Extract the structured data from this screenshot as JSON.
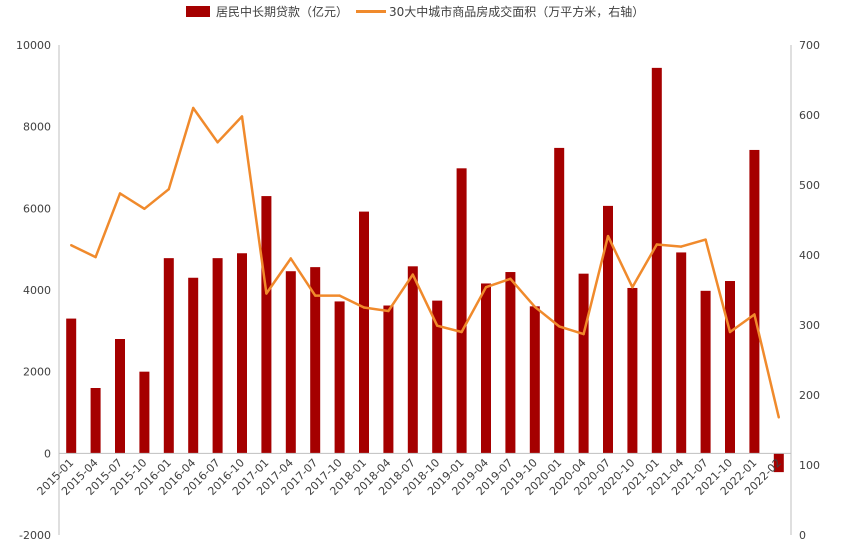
{
  "chart_data": {
    "type": "bar+line",
    "categories": [
      "2015-01",
      "2015-04",
      "2015-07",
      "2015-10",
      "2016-01",
      "2016-04",
      "2016-07",
      "2016-10",
      "2017-01",
      "2017-04",
      "2017-07",
      "2017-10",
      "2018-01",
      "2018-04",
      "2018-07",
      "2018-10",
      "2019-01",
      "2019-04",
      "2019-07",
      "2019-10",
      "2020-01",
      "2020-04",
      "2020-07",
      "2020-10",
      "2021-01",
      "2021-04",
      "2021-07",
      "2021-10",
      "2022-01",
      "2022-02"
    ],
    "series": [
      {
        "name": "居民中长期贷款（亿元）",
        "type": "bar",
        "axis": "left",
        "color": "#A50000",
        "values": [
          3300,
          1600,
          2800,
          2000,
          4780,
          4300,
          4780,
          4900,
          6300,
          4460,
          4560,
          3720,
          5920,
          3620,
          4580,
          3740,
          6980,
          4160,
          4440,
          3600,
          7480,
          4400,
          6060,
          4050,
          9440,
          4920,
          3980,
          4220,
          7430,
          -460
        ]
      },
      {
        "name": "30大中城市商品房成交面积（万平方米，右轴）",
        "type": "line",
        "axis": "right",
        "color": "#F08A2C",
        "values": [
          414,
          397,
          488,
          466,
          494,
          610,
          561,
          598,
          345,
          395,
          342,
          342,
          325,
          320,
          372,
          299,
          290,
          354,
          366,
          326,
          298,
          287,
          427,
          354,
          415,
          412,
          422,
          290,
          315,
          168
        ]
      }
    ],
    "y_left": {
      "min": -2000,
      "max": 10000,
      "ticks": [
        -2000,
        0,
        2000,
        4000,
        6000,
        8000,
        10000
      ]
    },
    "y_right": {
      "min": 0,
      "max": 700,
      "ticks": [
        0,
        100,
        200,
        300,
        400,
        500,
        600,
        700
      ]
    },
    "legend_position": "top-center",
    "grid": false
  }
}
